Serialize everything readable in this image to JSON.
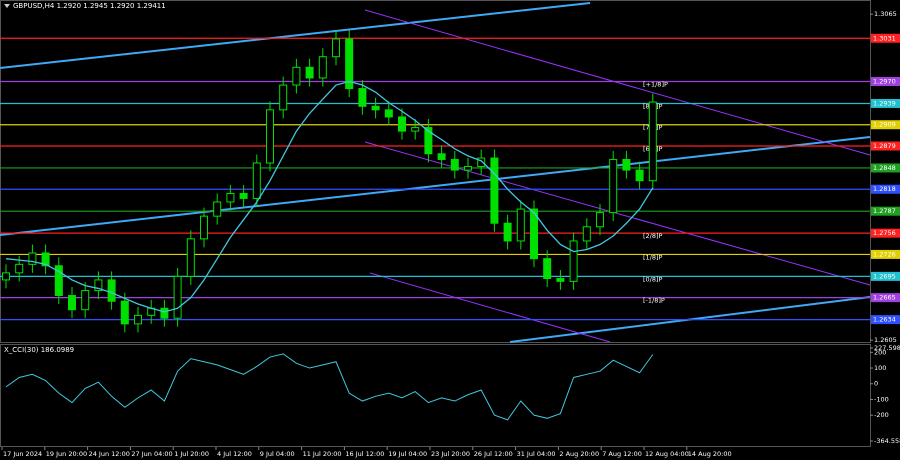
{
  "chart_data": {
    "type": "candlestick",
    "title": "GBPUSD,H4  1.2920 1.2945 1.2920 1.29411",
    "ylim": [
      1.2601,
      1.3085
    ],
    "yticks": [
      1.3065,
      1.2605
    ],
    "time_labels": [
      "17 Jun 2024",
      "19 Jun 20:00",
      "24 Jun 12:00",
      "27 Jun 04:00",
      "1 Jul 20:00",
      "4 Jul 12:00",
      "9 Jul 04:00",
      "11 Jul 20:00",
      "16 Jul 12:00",
      "19 Jul 04:00",
      "23 Jul 20:00",
      "26 Jul 12:00",
      "31 Jul 04:00",
      "2 Aug 20:00",
      "7 Aug 12:00",
      "12 Aug 04:00",
      "14 Aug 20:00"
    ],
    "candle_color": "#00e000",
    "open": [
      1.269,
      1.27,
      1.2712,
      1.2728,
      1.271,
      1.2668,
      1.2648,
      1.2675,
      1.269,
      1.266,
      1.2628,
      1.264,
      1.265,
      1.2636,
      1.2695,
      1.2748,
      1.278,
      1.28,
      1.2812,
      1.2805,
      1.2855,
      1.293,
      1.2965,
      1.299,
      1.2975,
      1.3005,
      1.303,
      1.296,
      1.2935,
      1.293,
      1.292,
      1.29,
      1.2905,
      1.2868,
      1.286,
      1.2845,
      1.285,
      1.2862,
      1.277,
      1.2745,
      1.279,
      1.272,
      1.2692,
      1.2688,
      1.2745,
      1.2765,
      1.2785,
      1.286,
      1.2845,
      1.283
    ],
    "high": [
      1.2712,
      1.2724,
      1.274,
      1.274,
      1.2722,
      1.268,
      1.2687,
      1.2702,
      1.2702,
      1.2672,
      1.2652,
      1.2662,
      1.2662,
      1.2707,
      1.276,
      1.2792,
      1.2812,
      1.2824,
      1.2824,
      1.2867,
      1.2942,
      1.2977,
      1.3002,
      1.3002,
      1.3017,
      1.3042,
      1.3042,
      1.2972,
      1.2947,
      1.2942,
      1.2932,
      1.2917,
      1.2917,
      1.288,
      1.2872,
      1.2862,
      1.2874,
      1.2874,
      1.2782,
      1.2802,
      1.2802,
      1.2732,
      1.2704,
      1.2757,
      1.2777,
      1.2797,
      1.2872,
      1.2872,
      1.2857,
      1.2953
    ],
    "low": [
      1.2678,
      1.2688,
      1.27,
      1.2698,
      1.2656,
      1.2636,
      1.2636,
      1.2663,
      1.2648,
      1.2616,
      1.2616,
      1.2628,
      1.2624,
      1.2624,
      1.2683,
      1.2736,
      1.2768,
      1.2788,
      1.2793,
      1.2793,
      1.2843,
      1.2918,
      1.2953,
      1.2963,
      1.2963,
      1.2993,
      1.2948,
      1.2923,
      1.2918,
      1.2908,
      1.2888,
      1.2888,
      1.2856,
      1.2848,
      1.2833,
      1.2833,
      1.2838,
      1.2758,
      1.2733,
      1.2733,
      1.2708,
      1.268,
      1.2676,
      1.2676,
      1.2733,
      1.2753,
      1.2773,
      1.2833,
      1.2818,
      1.2818
    ],
    "close": [
      1.27,
      1.2712,
      1.2728,
      1.271,
      1.2668,
      1.2648,
      1.2675,
      1.269,
      1.266,
      1.2628,
      1.264,
      1.265,
      1.2636,
      1.2695,
      1.2748,
      1.278,
      1.28,
      1.2812,
      1.2805,
      1.2855,
      1.293,
      1.2965,
      1.299,
      1.2975,
      1.3005,
      1.303,
      1.296,
      1.2935,
      1.293,
      1.292,
      1.29,
      1.2905,
      1.2868,
      1.286,
      1.2845,
      1.285,
      1.2862,
      1.277,
      1.2745,
      1.279,
      1.272,
      1.2692,
      1.2688,
      1.2745,
      1.2765,
      1.2785,
      1.286,
      1.2845,
      1.283,
      1.2941
    ],
    "ma": {
      "color": "#40c8e0",
      "values": [
        1.272,
        1.2718,
        1.2716,
        1.2712,
        1.2702,
        1.269,
        1.2682,
        1.2678,
        1.2672,
        1.2664,
        1.2656,
        1.265,
        1.2645,
        1.265,
        1.2665,
        1.269,
        1.272,
        1.275,
        1.2775,
        1.28,
        1.283,
        1.2865,
        1.29,
        1.2925,
        1.2945,
        1.2965,
        1.297,
        1.2965,
        1.2955,
        1.294,
        1.2928,
        1.2915,
        1.29,
        1.2888,
        1.2875,
        1.2865,
        1.2858,
        1.284,
        1.2818,
        1.28,
        1.2785,
        1.276,
        1.274,
        1.273,
        1.2733,
        1.274,
        1.2752,
        1.277,
        1.279,
        1.282
      ]
    },
    "levels": [
      {
        "price": 1.3031,
        "label": "1.3031",
        "color": "#ff2020"
      },
      {
        "price": 1.297,
        "label": "1.2970",
        "color": "#a040e0",
        "tag": "[+1/8]P"
      },
      {
        "price": 1.2939,
        "label": "1.2939",
        "color": "#20c0d0",
        "tag": "[8/8]P"
      },
      {
        "price": 1.2909,
        "label": "1.2909",
        "color": "#e0d000",
        "tag": "[7/8]P"
      },
      {
        "price": 1.2879,
        "label": "1.2879",
        "color": "#ff2020",
        "tag": "[6/8]P"
      },
      {
        "price": 1.2848,
        "label": "1.2848",
        "color": "#20a020"
      },
      {
        "price": 1.2818,
        "label": "1.2818",
        "color": "#3050ff"
      },
      {
        "price": 1.2787,
        "label": "1.2787",
        "color": "#20a020"
      },
      {
        "price": 1.2756,
        "label": "1.2756",
        "color": "#ff2020",
        "tag": "[2/8]P"
      },
      {
        "price": 1.2726,
        "label": "1.2726",
        "color": "#e0d000",
        "tag": "[1/8]P"
      },
      {
        "price": 1.2695,
        "label": "1.2695",
        "color": "#20c0d0",
        "tag": "[0/8]P"
      },
      {
        "price": 1.2665,
        "label": "1.2665",
        "color": "#a040e0",
        "tag": "[-1/8]P"
      },
      {
        "price": 1.2634,
        "label": "1.2634",
        "color": "#3050ff"
      }
    ],
    "indicator": {
      "title": "X_CCI(30) 186.0989",
      "color": "#40c8e0",
      "ylim": [
        -364.558,
        227.598
      ],
      "yticks": [
        227.598,
        200,
        100,
        0,
        -100,
        -200,
        -364.558
      ],
      "values": [
        -20,
        40,
        60,
        20,
        -60,
        -120,
        -30,
        10,
        -80,
        -150,
        -90,
        -40,
        -110,
        80,
        160,
        140,
        120,
        90,
        60,
        110,
        170,
        190,
        130,
        100,
        120,
        140,
        -60,
        -110,
        -80,
        -60,
        -90,
        -50,
        -120,
        -90,
        -110,
        -70,
        -40,
        -200,
        -230,
        -110,
        -200,
        -220,
        -190,
        40,
        60,
        80,
        150,
        110,
        70,
        186.0989
      ]
    }
  }
}
